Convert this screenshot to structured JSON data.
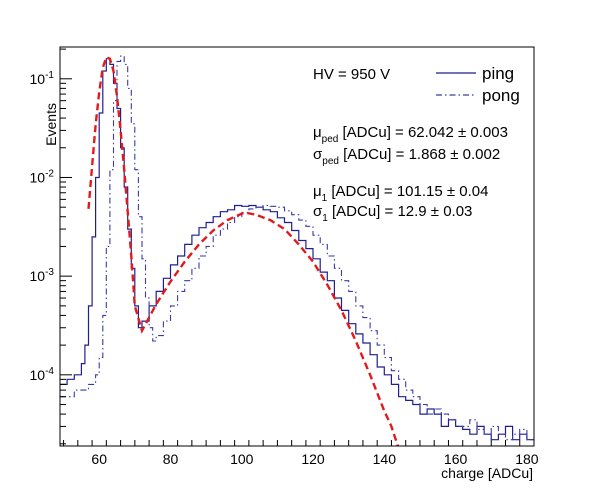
{
  "chart_data": {
    "type": "line",
    "title": "",
    "xlabel": "charge [ADCu]",
    "ylabel": "Events",
    "xlim": [
      49,
      182
    ],
    "ylim": [
      1.9e-05,
      0.21
    ],
    "log_y": true,
    "grid": false,
    "legend_position": "top-right",
    "x_ticks": [
      60,
      80,
      100,
      120,
      140,
      160,
      180
    ],
    "y_ticks": [
      {
        "value": 0.0001,
        "base": "10",
        "exp": "-4"
      },
      {
        "value": 0.001,
        "base": "10",
        "exp": "-3"
      },
      {
        "value": 0.01,
        "base": "10",
        "exp": "-2"
      },
      {
        "value": 0.1,
        "base": "10",
        "exp": "-1"
      }
    ],
    "annotations": {
      "hv": "HV = 950 V",
      "mu_ped": {
        "symbol": "μ",
        "sub": "ped",
        "text": " [ADCu] = 62.042 ± 0.003"
      },
      "sigma_ped": {
        "symbol": "σ",
        "sub": "ped",
        "text": " [ADCu] = 1.868 ± 0.002"
      },
      "mu_1": {
        "symbol": "μ",
        "sub": "1",
        "text": " [ADCu] = 101.15 ± 0.04"
      },
      "sigma_1": {
        "symbol": "σ",
        "sub": "1",
        "text": " [ADCu] = 12.9 ± 0.03"
      }
    },
    "series": [
      {
        "name": "ping",
        "style": "solid-step",
        "color": "#1f1f8f",
        "x": [
          49,
          51,
          53,
          55,
          56,
          57,
          58,
          59,
          60,
          61,
          62,
          63,
          64,
          65,
          66,
          67,
          68,
          69,
          70,
          71,
          72,
          74,
          76,
          78,
          80,
          82,
          84,
          86,
          88,
          90,
          92,
          94,
          96,
          98,
          100,
          102,
          104,
          106,
          108,
          110,
          112,
          114,
          116,
          118,
          120,
          122,
          124,
          126,
          128,
          130,
          132,
          134,
          136,
          138,
          140,
          142,
          144,
          146,
          148,
          150,
          152,
          154,
          156,
          158,
          160,
          162,
          164,
          166,
          168,
          170,
          172,
          174,
          176,
          178,
          180,
          182
        ],
        "y": [
          8e-05,
          9e-05,
          0.0001,
          0.00013,
          0.0002,
          0.0005,
          0.0025,
          0.01,
          0.045,
          0.12,
          0.16,
          0.14,
          0.09,
          0.05,
          0.02,
          0.008,
          0.003,
          0.0012,
          0.0005,
          0.0003,
          0.00035,
          0.0005,
          0.0007,
          0.00095,
          0.0013,
          0.0016,
          0.0021,
          0.0026,
          0.0031,
          0.0035,
          0.004,
          0.0045,
          0.0047,
          0.0052,
          0.0051,
          0.0052,
          0.005,
          0.0047,
          0.0045,
          0.0039,
          0.0035,
          0.0029,
          0.0023,
          0.0019,
          0.0015,
          0.0011,
          0.0009,
          0.0006,
          0.00045,
          0.00033,
          0.00026,
          0.00021,
          0.00016,
          0.00012,
          0.0001,
          8e-05,
          6e-05,
          5.5e-05,
          5e-05,
          4e-05,
          4.5e-05,
          4e-05,
          3e-05,
          3.5e-05,
          3e-05,
          2.8e-05,
          2.5e-05,
          3e-05,
          2.5e-05,
          2.2e-05,
          2.5e-05,
          3e-05,
          2.2e-05,
          2.5e-05,
          2.2e-05,
          2.2e-05
        ]
      },
      {
        "name": "pong",
        "style": "dash-dot-step",
        "color": "#3a3aa8",
        "x": [
          49,
          51,
          53,
          55,
          57,
          59,
          60,
          61,
          62,
          63,
          64,
          65,
          66,
          67,
          68,
          69,
          70,
          71,
          72,
          73,
          74,
          75,
          76,
          78,
          80,
          82,
          84,
          86,
          88,
          90,
          92,
          94,
          96,
          98,
          100,
          102,
          104,
          106,
          108,
          110,
          112,
          114,
          116,
          118,
          120,
          122,
          124,
          126,
          128,
          130,
          132,
          134,
          136,
          138,
          140,
          142,
          144,
          146,
          148,
          150,
          152,
          154,
          156,
          158,
          160,
          162,
          164,
          166,
          168,
          170,
          172,
          174,
          176,
          178,
          180,
          182
        ],
        "y": [
          6e-05,
          6e-05,
          7e-05,
          7e-05,
          8e-05,
          0.0001,
          0.00015,
          0.0004,
          0.002,
          0.012,
          0.06,
          0.15,
          0.17,
          0.14,
          0.08,
          0.035,
          0.012,
          0.004,
          0.0015,
          0.0006,
          0.0003,
          0.00022,
          0.00025,
          0.00035,
          0.0005,
          0.0007,
          0.0009,
          0.0012,
          0.0016,
          0.002,
          0.0026,
          0.003,
          0.0035,
          0.004,
          0.0044,
          0.0048,
          0.005,
          0.0052,
          0.0051,
          0.005,
          0.0046,
          0.0042,
          0.0037,
          0.0032,
          0.0026,
          0.0021,
          0.0016,
          0.0012,
          0.0009,
          0.0007,
          0.0005,
          0.00038,
          0.00028,
          0.0002,
          0.00015,
          0.00011,
          9e-05,
          7e-05,
          6e-05,
          5e-05,
          4e-05,
          4.5e-05,
          4e-05,
          3.5e-05,
          3e-05,
          3e-05,
          3.5e-05,
          2.8e-05,
          2.5e-05,
          3e-05,
          2.5e-05,
          2.2e-05,
          2.5e-05,
          2.8e-05,
          2.2e-05,
          2.5e-05
        ]
      },
      {
        "name": "fit",
        "style": "dashed",
        "color": "#e31a1c",
        "x": [
          57,
          58,
          59,
          60,
          61,
          62,
          63,
          64,
          65,
          66,
          67,
          68,
          69,
          70,
          72,
          76,
          80,
          84,
          88,
          92,
          96,
          100,
          101,
          104,
          108,
          112,
          116,
          120,
          124,
          128,
          132,
          136,
          140,
          142,
          144
        ],
        "y": [
          0.0048,
          0.013,
          0.034,
          0.073,
          0.13,
          0.165,
          0.16,
          0.12,
          0.067,
          0.03,
          0.012,
          0.0045,
          0.0016,
          0.0005,
          0.00028,
          0.00052,
          0.00088,
          0.0014,
          0.0021,
          0.0029,
          0.0037,
          0.0043,
          0.0044,
          0.0042,
          0.0037,
          0.003,
          0.0021,
          0.0014,
          0.00082,
          0.00045,
          0.00022,
          0.0001,
          4.3e-05,
          3e-05,
          1.8e-05
        ]
      }
    ]
  }
}
